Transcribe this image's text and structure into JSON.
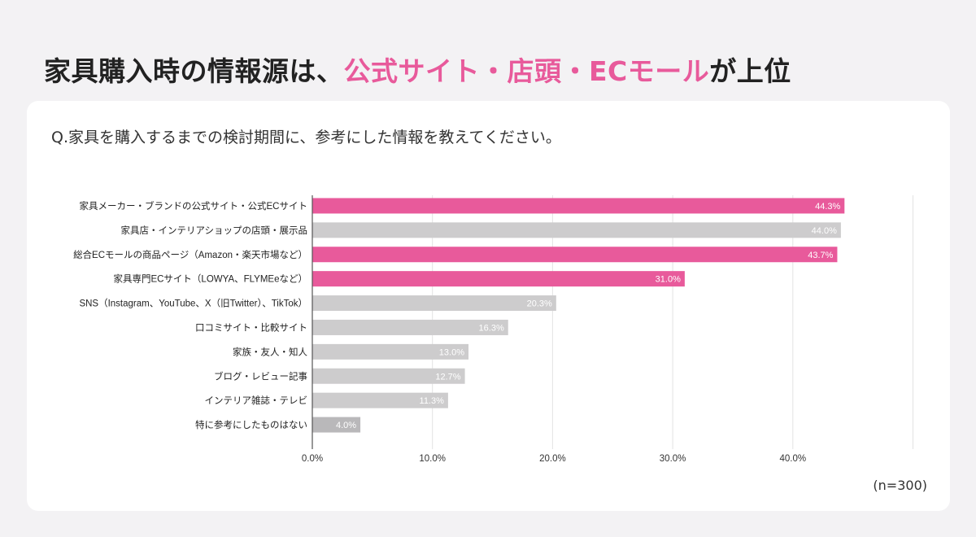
{
  "headline": {
    "prefix": "家具購入時の情報源は、",
    "highlight": "公式サイト・店頭・ECモール",
    "suffix": "が上位"
  },
  "question": "Q.家具を購入するまでの検討期間に、参考にした情報を教えてください。",
  "note": "(n=300)",
  "colors": {
    "highlight": "#e85a9b",
    "other": "#cdcccd",
    "last": "#b9b8ba",
    "grid": "#e3e3e3",
    "axis": "#555555"
  },
  "chart_data": {
    "type": "bar",
    "orientation": "horizontal",
    "categories": [
      "家具メーカー・ブランドの公式サイト・公式ECサイト",
      "家具店・インテリアショップの店頭・展示品",
      "総合ECモールの商品ページ（Amazon・楽天市場など）",
      "家具専門ECサイト（LOWYA、FLYMEeなど）",
      "SNS（Instagram、YouTube、X（旧Twitter）、TikTok）",
      "口コミサイト・比較サイト",
      "家族・友人・知人",
      "ブログ・レビュー記事",
      "インテリア雑誌・テレビ",
      "特に参考にしたものはない"
    ],
    "values": [
      44.3,
      44.0,
      43.7,
      31.0,
      20.3,
      16.3,
      13.0,
      12.7,
      11.3,
      4.0
    ],
    "value_labels": [
      "44.3%",
      "44.0%",
      "43.7%",
      "31.0%",
      "20.3%",
      "16.3%",
      "13.0%",
      "12.7%",
      "11.3%",
      "4.0%"
    ],
    "highlighted": [
      true,
      false,
      true,
      true,
      false,
      false,
      false,
      false,
      false,
      false
    ],
    "xlim": [
      0,
      50
    ],
    "xticks": [
      0,
      10,
      20,
      30,
      40
    ],
    "xtick_labels": [
      "0.0%",
      "10.0%",
      "20.0%",
      "30.0%",
      "40.0%"
    ],
    "grid": true
  }
}
